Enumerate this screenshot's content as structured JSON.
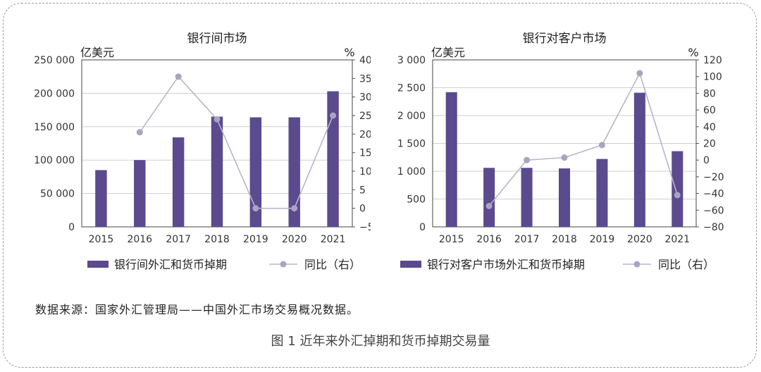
{
  "chart_data": [
    {
      "type": "bar",
      "title": "银行间市场",
      "ylabel": "亿美元",
      "y2label": "%",
      "categories": [
        "2015",
        "2016",
        "2017",
        "2018",
        "2019",
        "2020",
        "2021"
      ],
      "ylim": [
        0,
        250000
      ],
      "y_ticks": [
        "0",
        "50 000",
        "100 000",
        "150 000",
        "200 000",
        "250 000"
      ],
      "y2lim": [
        -5,
        40
      ],
      "y2_ticks": [
        "−5",
        "0",
        "5",
        "10",
        "15",
        "20",
        "25",
        "30",
        "35",
        "40"
      ],
      "series": [
        {
          "name": "银行间外汇和货币掉期",
          "type": "bar",
          "axis": "left",
          "values": [
            85000,
            100000,
            134000,
            165000,
            164000,
            164000,
            203000
          ]
        },
        {
          "name": "同比（右）",
          "type": "line",
          "axis": "right",
          "values": [
            null,
            20.5,
            35.5,
            24,
            0,
            0,
            25
          ]
        }
      ],
      "legend": "bottom",
      "grid": true
    },
    {
      "type": "bar",
      "title": "银行对客户市场",
      "ylabel": "亿美元",
      "y2label": "%",
      "categories": [
        "2015",
        "2016",
        "2017",
        "2018",
        "2019",
        "2020",
        "2021"
      ],
      "ylim": [
        0,
        3000
      ],
      "y_ticks": [
        "0",
        "500",
        "1 000",
        "1 500",
        "2 000",
        "2 500",
        "3 000"
      ],
      "y2lim": [
        -80,
        120
      ],
      "y2_ticks": [
        "−80",
        "−60",
        "−40",
        "−20",
        "0",
        "20",
        "40",
        "60",
        "80",
        "100",
        "120"
      ],
      "series": [
        {
          "name": "银行对客户市场外汇和货币掉期",
          "type": "bar",
          "axis": "left",
          "values": [
            2420,
            1060,
            1060,
            1050,
            1220,
            2410,
            1360
          ]
        },
        {
          "name": "同比（右）",
          "type": "line",
          "axis": "right",
          "values": [
            null,
            -55,
            0,
            3,
            18,
            104,
            -42
          ]
        }
      ],
      "legend": "bottom",
      "grid": true
    }
  ],
  "colors": {
    "bar": "#5b4a8e",
    "line": "#b9b4c9",
    "marker": "#aaa3c2",
    "grid": "#cfcfcf"
  },
  "source_note": "数据来源：国家外汇管理局——中国外汇市场交易概况数据。",
  "figure_caption": "图 1  近年来外汇掉期和货币掉期交易量"
}
